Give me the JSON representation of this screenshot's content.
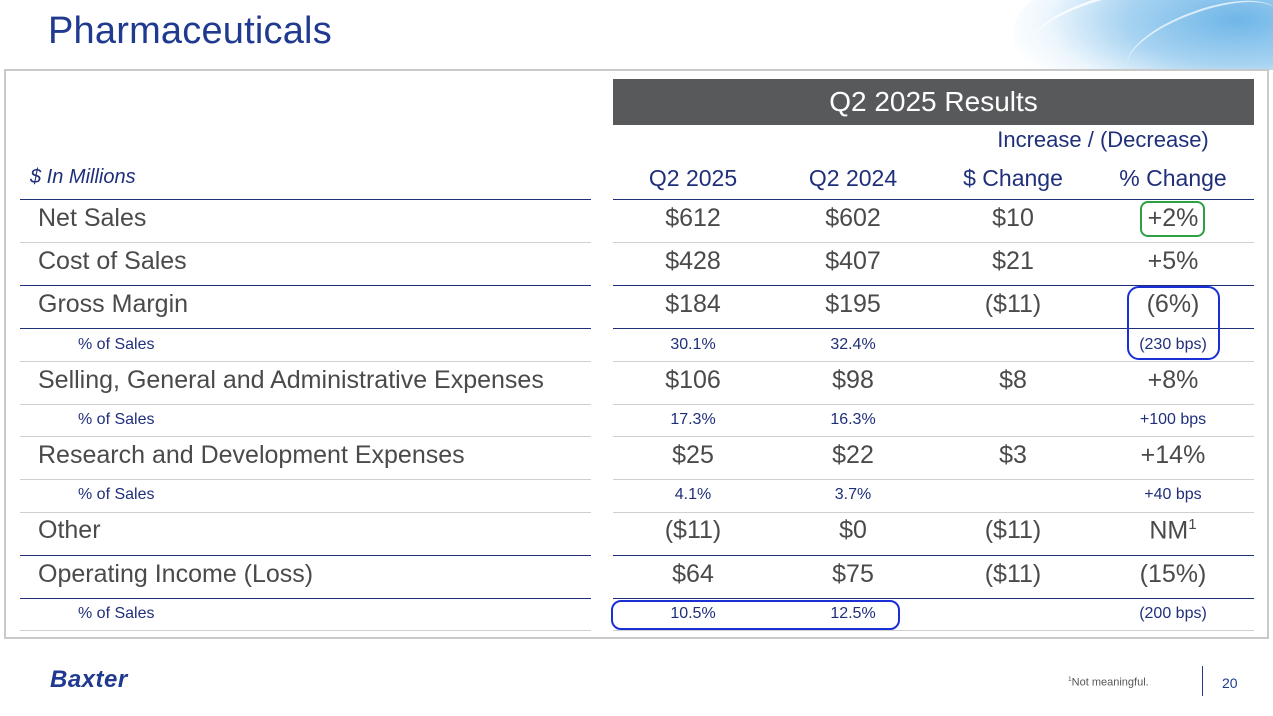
{
  "page_title": "Pharmaceuticals",
  "banner": "Q2 2025 Results",
  "increase_decrease_header": "Increase / (Decrease)",
  "units_label": "$ In Millions",
  "columns": [
    "Q2 2025",
    "Q2 2024",
    "$ Change",
    "% Change"
  ],
  "rows": [
    {
      "label": "Net Sales",
      "q2_2025": "$612",
      "q2_2024": "$602",
      "change": "$10",
      "pct": "+2%"
    },
    {
      "label": "Cost of Sales",
      "q2_2025": "$428",
      "q2_2024": "$407",
      "change": "$21",
      "pct": "+5%"
    },
    {
      "label": "Gross Margin",
      "q2_2025": "$184",
      "q2_2024": "$195",
      "change": "($11)",
      "pct": "(6%)"
    },
    {
      "label": "% of Sales",
      "q2_2025": "30.1%",
      "q2_2024": "32.4%",
      "change": "",
      "pct": "(230 bps)"
    },
    {
      "label": "Selling, General and Administrative Expenses",
      "q2_2025": "$106",
      "q2_2024": "$98",
      "change": "$8",
      "pct": "+8%"
    },
    {
      "label": "% of Sales",
      "q2_2025": "17.3%",
      "q2_2024": "16.3%",
      "change": "",
      "pct": "+100 bps"
    },
    {
      "label": "Research and Development Expenses",
      "q2_2025": "$25",
      "q2_2024": "$22",
      "change": "$3",
      "pct": "+14%"
    },
    {
      "label": "% of Sales",
      "q2_2025": "4.1%",
      "q2_2024": "3.7%",
      "change": "",
      "pct": "+40 bps"
    },
    {
      "label": "Other",
      "q2_2025": "($11)",
      "q2_2024": "$0",
      "change": "($11)",
      "pct": "NM",
      "pct_footnote_mark": "1"
    },
    {
      "label": "Operating Income (Loss)",
      "q2_2025": "$64",
      "q2_2024": "$75",
      "change": "($11)",
      "pct": "(15%)"
    },
    {
      "label": "% of Sales",
      "q2_2025": "10.5%",
      "q2_2024": "12.5%",
      "change": "",
      "pct": "(200 bps)"
    }
  ],
  "footer": {
    "logo": "Baxter",
    "footnote_mark": "1",
    "footnote_text": "Not meaningful.",
    "page_number": "20"
  },
  "colors": {
    "title_blue": "#1f3a8f",
    "header_navy": "#1f2f7a",
    "banner_gray": "#58595b",
    "highlight_blue": "#1a2fd6",
    "highlight_green": "#2ea043"
  }
}
